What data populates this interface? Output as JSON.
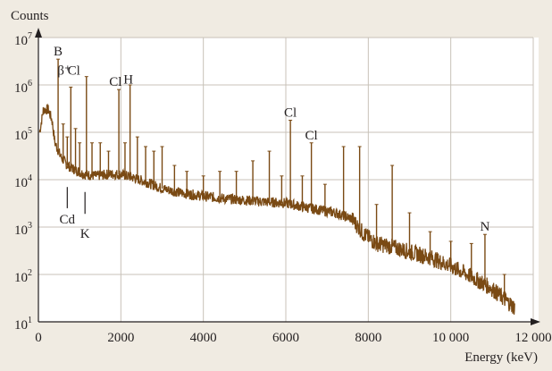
{
  "colors": {
    "background": "#f0ebe2",
    "plot_background": "#ffffff",
    "trace": "#7a4a14",
    "grid": "#c8c2b8",
    "axis": "#231f20"
  },
  "chart_data": {
    "type": "line",
    "title": "",
    "xlabel": "Energy (keV)",
    "ylabel": "Counts",
    "xlim": [
      0,
      12000
    ],
    "ylim": [
      10,
      10000000
    ],
    "log_y": true,
    "grid": true,
    "x_ticks": [
      {
        "value": 0,
        "label": "0"
      },
      {
        "value": 2000,
        "label": "2000"
      },
      {
        "value": 4000,
        "label": "4000"
      },
      {
        "value": 6000,
        "label": "6000"
      },
      {
        "value": 8000,
        "label": "8000"
      },
      {
        "value": 10000,
        "label": "10 000"
      },
      {
        "value": 12000,
        "label": "12 000"
      }
    ],
    "y_ticks": [
      {
        "value": 10,
        "base": "10",
        "exp": "1"
      },
      {
        "value": 100,
        "base": "10",
        "exp": "2"
      },
      {
        "value": 1000,
        "base": "10",
        "exp": "3"
      },
      {
        "value": 10000,
        "base": "10",
        "exp": "4"
      },
      {
        "value": 100000,
        "base": "10",
        "exp": "5"
      },
      {
        "value": 1000000,
        "base": "10",
        "exp": "6"
      },
      {
        "value": 10000000,
        "base": "10",
        "exp": "7"
      }
    ],
    "continuum": [
      [
        30,
        100000
      ],
      [
        120,
        300000
      ],
      [
        240,
        300000
      ],
      [
        330,
        180000
      ],
      [
        400,
        60000
      ],
      [
        550,
        30000
      ],
      [
        700,
        20000
      ],
      [
        900,
        16000
      ],
      [
        1100,
        13000
      ],
      [
        1400,
        12000
      ],
      [
        1700,
        13000
      ],
      [
        2000,
        13000
      ],
      [
        2300,
        11000
      ],
      [
        2600,
        9000
      ],
      [
        3000,
        6500
      ],
      [
        3500,
        5200
      ],
      [
        4000,
        4500
      ],
      [
        4500,
        4000
      ],
      [
        5000,
        3700
      ],
      [
        5500,
        3400
      ],
      [
        6000,
        3200
      ],
      [
        6300,
        2800
      ],
      [
        6700,
        2400
      ],
      [
        7200,
        2000
      ],
      [
        7600,
        1500
      ],
      [
        7900,
        700
      ],
      [
        8200,
        450
      ],
      [
        8600,
        380
      ],
      [
        9000,
        300
      ],
      [
        9500,
        230
      ],
      [
        10000,
        150
      ],
      [
        10500,
        90
      ],
      [
        11000,
        50
      ],
      [
        11300,
        30
      ],
      [
        11550,
        20
      ]
    ],
    "peaks": [
      {
        "x": 478,
        "y": 3500000
      },
      {
        "x": 600,
        "y": 150000
      },
      {
        "x": 700,
        "y": 80000
      },
      {
        "x": 786,
        "y": 900000
      },
      {
        "x": 900,
        "y": 120000
      },
      {
        "x": 1000,
        "y": 60000
      },
      {
        "x": 1165,
        "y": 1500000
      },
      {
        "x": 1300,
        "y": 60000
      },
      {
        "x": 1500,
        "y": 60000
      },
      {
        "x": 1700,
        "y": 40000
      },
      {
        "x": 1951,
        "y": 800000
      },
      {
        "x": 2100,
        "y": 60000
      },
      {
        "x": 2223,
        "y": 1000000
      },
      {
        "x": 2400,
        "y": 80000
      },
      {
        "x": 2600,
        "y": 50000
      },
      {
        "x": 2800,
        "y": 40000
      },
      {
        "x": 3000,
        "y": 50000
      },
      {
        "x": 3300,
        "y": 20000
      },
      {
        "x": 3600,
        "y": 15000
      },
      {
        "x": 4000,
        "y": 12000
      },
      {
        "x": 4400,
        "y": 15000
      },
      {
        "x": 4800,
        "y": 15000
      },
      {
        "x": 5200,
        "y": 25000
      },
      {
        "x": 5600,
        "y": 40000
      },
      {
        "x": 5900,
        "y": 12000
      },
      {
        "x": 6111,
        "y": 180000
      },
      {
        "x": 6400,
        "y": 12000
      },
      {
        "x": 6620,
        "y": 60000
      },
      {
        "x": 6950,
        "y": 8000
      },
      {
        "x": 7400,
        "y": 50000
      },
      {
        "x": 7790,
        "y": 50000
      },
      {
        "x": 8200,
        "y": 3000
      },
      {
        "x": 8580,
        "y": 20000
      },
      {
        "x": 9000,
        "y": 2000
      },
      {
        "x": 9500,
        "y": 800
      },
      {
        "x": 10000,
        "y": 500
      },
      {
        "x": 10500,
        "y": 450
      },
      {
        "x": 10829,
        "y": 700
      },
      {
        "x": 11300,
        "y": 100
      }
    ],
    "annotations": [
      {
        "text": "B",
        "x": 478,
        "y": 3500000
      },
      {
        "text": "β⁺",
        "x": 630,
        "y": 1400000
      },
      {
        "text": "Cl",
        "x": 860,
        "y": 1400000
      },
      {
        "text": "Cl",
        "x": 1870,
        "y": 800000
      },
      {
        "text": "H",
        "x": 2180,
        "y": 900000
      },
      {
        "text": "Cl",
        "x": 6111,
        "y": 180000
      },
      {
        "text": "Cl",
        "x": 6620,
        "y": 60000
      },
      {
        "text": "Cd",
        "x": 700,
        "y": 1000,
        "marker_top": 7000,
        "marker_bottom": 2500
      },
      {
        "text": "K",
        "x": 1130,
        "y": 500,
        "marker_top": 5500,
        "marker_bottom": 1900
      },
      {
        "text": "N",
        "x": 10829,
        "y": 700
      }
    ]
  }
}
